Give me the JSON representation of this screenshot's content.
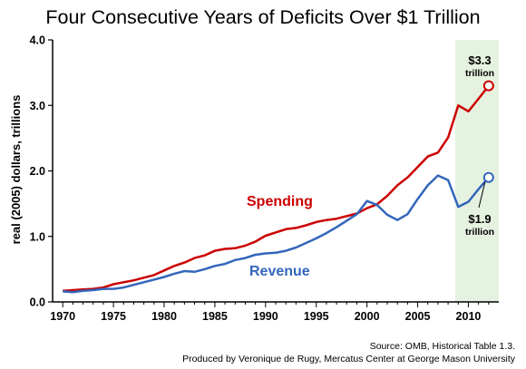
{
  "chart_data": {
    "type": "line",
    "title": "Four Consecutive Years of Deficits Over $1 Trillion",
    "ylabel": "real (2005) dollars, trillions",
    "xlabel": "",
    "xlim": [
      1969,
      2013
    ],
    "ylim": [
      0,
      4.0
    ],
    "x_ticks": [
      1970,
      1975,
      1980,
      1985,
      1990,
      1995,
      2000,
      2005,
      2010
    ],
    "y_ticks": [
      "0.0",
      "1.0",
      "2.0",
      "3.0",
      "4.0"
    ],
    "grid": false,
    "highlight_region": {
      "x_start": 2008.7,
      "x_end": 2013,
      "color": "#e6f2e0"
    },
    "x": [
      1970,
      1971,
      1972,
      1973,
      1974,
      1975,
      1976,
      1977,
      1978,
      1979,
      1980,
      1981,
      1982,
      1983,
      1984,
      1985,
      1986,
      1987,
      1988,
      1989,
      1990,
      1991,
      1992,
      1993,
      1994,
      1995,
      1996,
      1997,
      1998,
      1999,
      2000,
      2001,
      2002,
      2003,
      2004,
      2005,
      2006,
      2007,
      2008,
      2009,
      2010,
      2011,
      2012
    ],
    "series": [
      {
        "name": "Spending",
        "color": "#cc0000",
        "values": [
          0.17,
          0.18,
          0.19,
          0.2,
          0.22,
          0.27,
          0.3,
          0.33,
          0.37,
          0.41,
          0.48,
          0.55,
          0.6,
          0.67,
          0.71,
          0.78,
          0.81,
          0.82,
          0.86,
          0.92,
          1.01,
          1.06,
          1.11,
          1.13,
          1.17,
          1.22,
          1.25,
          1.27,
          1.31,
          1.35,
          1.43,
          1.49,
          1.62,
          1.78,
          1.9,
          2.06,
          2.22,
          2.28,
          2.51,
          3.0,
          2.91,
          3.1,
          3.3
        ]
      },
      {
        "name": "Revenue",
        "color": "#3366bb",
        "values": [
          0.16,
          0.15,
          0.17,
          0.18,
          0.2,
          0.2,
          0.22,
          0.26,
          0.3,
          0.34,
          0.38,
          0.43,
          0.47,
          0.46,
          0.5,
          0.55,
          0.58,
          0.64,
          0.67,
          0.72,
          0.74,
          0.75,
          0.78,
          0.83,
          0.9,
          0.97,
          1.05,
          1.14,
          1.24,
          1.34,
          1.54,
          1.48,
          1.33,
          1.25,
          1.34,
          1.57,
          1.78,
          1.93,
          1.86,
          1.45,
          1.53,
          1.72,
          1.9
        ]
      }
    ],
    "annotations": {
      "spending_end": {
        "value": "$3.3",
        "unit": "trillion"
      },
      "revenue_end": {
        "value": "$1.9",
        "unit": "trillion"
      }
    },
    "source_lines": [
      "Source: OMB, Historical Table 1.3.",
      "Produced by Veronique de Rugy, Mercatus Center at George Mason University"
    ]
  }
}
